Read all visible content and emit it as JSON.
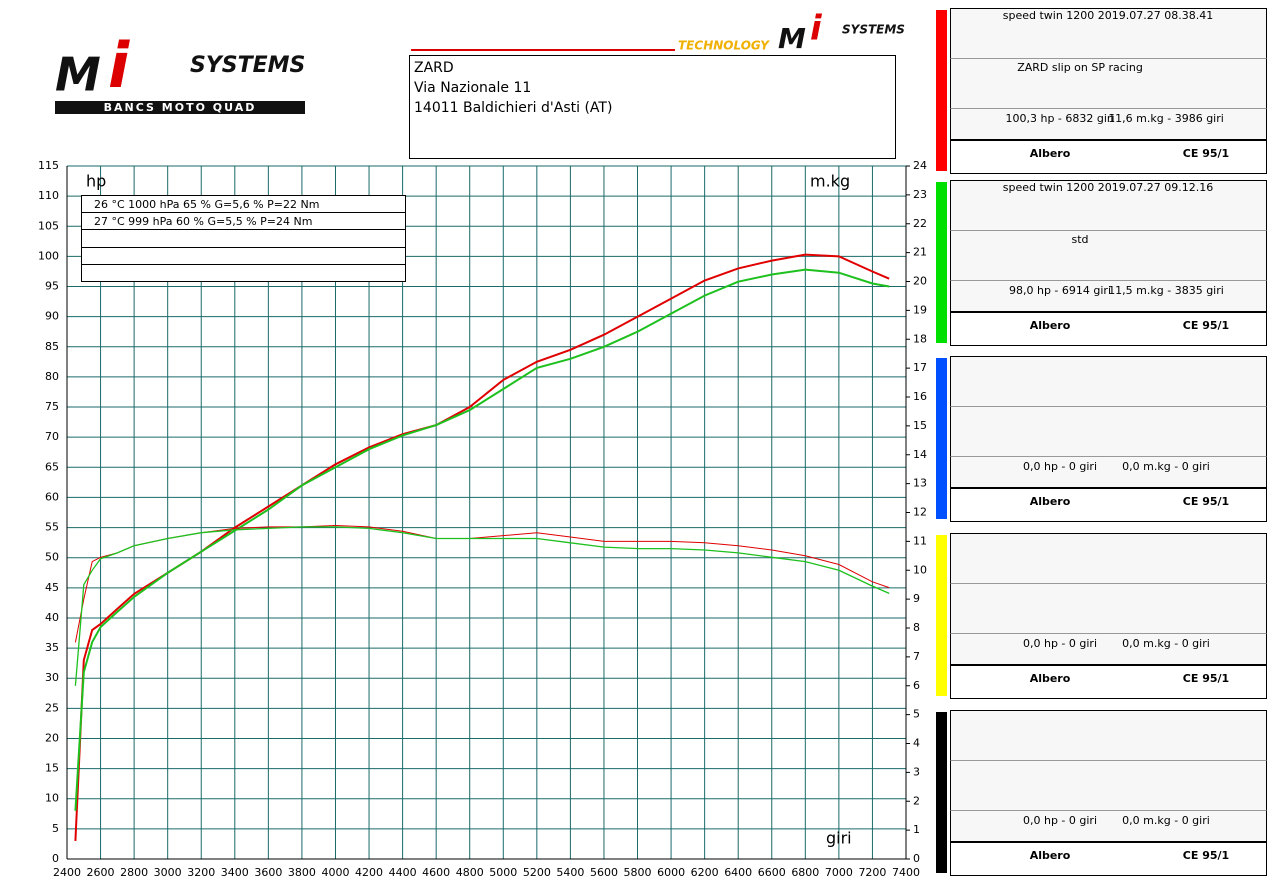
{
  "logo_left": {
    "systems": "SYSTEMS",
    "sub": "BANCS MOTO QUAD"
  },
  "logo_right": {
    "technology": "TECHNOLOGY",
    "systems": "SYSTEMS"
  },
  "address": [
    "ZARD",
    "Via Nazionale 11",
    "14011 Baldichieri d'Asti (AT)"
  ],
  "conditions": [
    "26 °C   1000 hPa   65 %   G=5,6 %   P=22 Nm",
    "27 °C   999 hPa   60 %   G=5,5 %   P=24 Nm"
  ],
  "chart_data": {
    "type": "line",
    "ylabel": "hp",
    "y2label": "m.kg",
    "xlabel": "giri",
    "x": [
      2450,
      2500,
      2550,
      2600,
      2700,
      2800,
      3000,
      3200,
      3400,
      3600,
      3800,
      4000,
      4200,
      4400,
      4600,
      4800,
      5000,
      5200,
      5400,
      5600,
      5800,
      6000,
      6200,
      6400,
      6600,
      6800,
      7000,
      7200,
      7300
    ],
    "series": [
      {
        "color": "#e00000",
        "width": 2,
        "values": [
          3,
          33,
          38,
          39,
          41.5,
          44,
          47.5,
          51,
          55,
          58.5,
          62,
          65.5,
          68.3,
          70.5,
          72,
          75,
          79.5,
          82.5,
          84.5,
          87,
          90,
          93,
          96,
          98,
          99.3,
          100.3,
          100,
          97.5,
          96.3
        ]
      },
      {
        "color": "#1ec01e",
        "width": 2,
        "values": [
          8,
          31,
          36,
          38.5,
          41,
          43.5,
          47.5,
          51,
          54.5,
          58,
          62,
          65,
          68,
          70.3,
          72,
          74.5,
          78,
          81.5,
          83,
          85,
          87.5,
          90.5,
          93.5,
          95.8,
          97,
          97.8,
          97.3,
          95.5,
          95
        ]
      },
      {
        "color": "#e00000",
        "width": 1,
        "axis": "y2",
        "values": [
          7.5,
          9.0,
          10.3,
          10.45,
          10.6,
          10.85,
          11.1,
          11.3,
          11.45,
          11.5,
          11.5,
          11.55,
          11.5,
          11.35,
          11.1,
          11.1,
          11.2,
          11.3,
          11.15,
          11.0,
          11.0,
          11.0,
          10.95,
          10.85,
          10.7,
          10.5,
          10.2,
          9.6,
          9.4
        ]
      },
      {
        "color": "#1ec01e",
        "width": 1.3,
        "axis": "y2",
        "values": [
          6,
          9.5,
          10.0,
          10.4,
          10.6,
          10.85,
          11.1,
          11.3,
          11.4,
          11.45,
          11.5,
          11.5,
          11.45,
          11.3,
          11.1,
          11.1,
          11.1,
          11.1,
          10.95,
          10.8,
          10.75,
          10.75,
          10.7,
          10.6,
          10.45,
          10.3,
          10.0,
          9.45,
          9.2
        ]
      }
    ],
    "xlim": [
      2400,
      7400
    ],
    "xticks": [
      2400,
      2600,
      2800,
      3000,
      3200,
      3400,
      3600,
      3800,
      4000,
      4200,
      4400,
      4600,
      4800,
      5000,
      5200,
      5400,
      5600,
      5800,
      6000,
      6200,
      6400,
      6600,
      6800,
      7000,
      7200,
      7400
    ],
    "ylim": [
      0,
      115
    ],
    "yticks": [
      0,
      5,
      10,
      15,
      20,
      25,
      30,
      35,
      40,
      45,
      50,
      55,
      60,
      65,
      70,
      75,
      80,
      85,
      90,
      95,
      100,
      105,
      110,
      115
    ],
    "y2lim": [
      0,
      24
    ],
    "y2ticks": [
      0,
      1,
      2,
      3,
      4,
      5,
      6,
      7,
      8,
      9,
      10,
      11,
      12,
      13,
      14,
      15,
      16,
      17,
      18,
      19,
      20,
      21,
      22,
      23,
      24
    ],
    "grid": true
  },
  "panels": [
    {
      "color": "#ff0000",
      "title": "speed twin 1200   2019.07.27 08.38.41",
      "note": "ZARD slip on SP racing",
      "hp": "100,3 hp - 6832 giri",
      "torque": "11,6 m.kg - 3986 giri",
      "shaft": "Albero",
      "norm": "CE 95/1"
    },
    {
      "color": "#00e000",
      "title": "speed twin 1200   2019.07.27 09.12.16",
      "note": "std",
      "hp": "98,0 hp - 6914 giri",
      "torque": "11,5 m.kg - 3835 giri",
      "shaft": "Albero",
      "norm": "CE 95/1"
    },
    {
      "color": "#0050ff",
      "hp": "0,0 hp - 0 giri",
      "torque": "0,0 m.kg - 0 giri",
      "shaft": "Albero",
      "norm": "CE 95/1"
    },
    {
      "color": "#ffff00",
      "hp": "0,0 hp - 0 giri",
      "torque": "0,0 m.kg - 0 giri",
      "shaft": "Albero",
      "norm": "CE 95/1"
    },
    {
      "color": "#000000",
      "hp": "0,0 hp - 0 giri",
      "torque": "0,0 m.kg - 0 giri",
      "shaft": "Albero",
      "norm": "CE 95/1"
    }
  ]
}
